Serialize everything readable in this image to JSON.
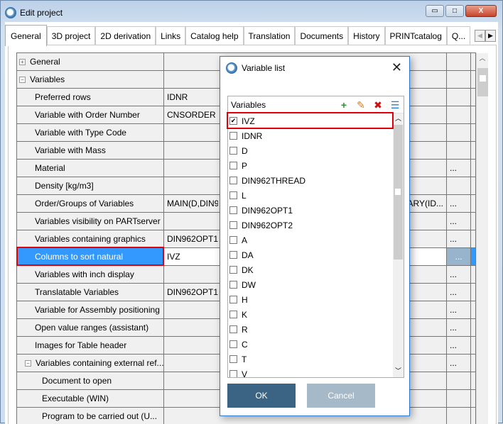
{
  "window": {
    "title": "Edit project",
    "minimize": "▭",
    "maximize": "□",
    "close": "X"
  },
  "tabs": [
    "General",
    "3D project",
    "2D derivation",
    "Links",
    "Catalog help",
    "Translation",
    "Documents",
    "History",
    "PRINTcatalog",
    "Q..."
  ],
  "tab_nav": {
    "prev": "◀",
    "next": "▶"
  },
  "grid": {
    "rows": [
      {
        "name": "General",
        "value": "",
        "level": 0,
        "expander": "+",
        "button": ""
      },
      {
        "name": "Variables",
        "value": "",
        "level": 0,
        "expander": "−",
        "button": ""
      },
      {
        "name": "Preferred rows",
        "value": "IDNR",
        "level": 1,
        "expander": "",
        "button": ""
      },
      {
        "name": "Variable with Order Number",
        "value": "CNSORDER",
        "level": 1,
        "expander": "",
        "button": ""
      },
      {
        "name": "Variable with Type Code",
        "value": "",
        "level": 1,
        "expander": "",
        "button": ""
      },
      {
        "name": "Variable with Mass",
        "value": "",
        "level": 1,
        "expander": "",
        "button": ""
      },
      {
        "name": "Material",
        "value": "",
        "level": 1,
        "expander": "",
        "button": "..."
      },
      {
        "name": "Density [kg/m3]",
        "value": "",
        "level": 1,
        "expander": "",
        "button": ""
      },
      {
        "name": "Order/Groups of Variables",
        "value": "MAIN(D,DIN962THREAD,L,DIN962OPT1,DIN962OPT2),SUMMARY(ID...",
        "level": 1,
        "expander": "",
        "button": "..."
      },
      {
        "name": "Variables visibility on PARTserver",
        "value": "",
        "level": 1,
        "expander": "",
        "button": "..."
      },
      {
        "name": "Variables containing graphics",
        "value": "DIN962OPT1,DIN962OPT2",
        "level": 1,
        "expander": "",
        "button": "..."
      },
      {
        "name": "Columns to sort natural",
        "value": "IVZ",
        "level": 1,
        "expander": "",
        "button": "...",
        "selected": true
      },
      {
        "name": "Variables with inch display",
        "value": "",
        "level": 1,
        "expander": "",
        "button": "..."
      },
      {
        "name": "Translatable Variables",
        "value": "DIN962OPT1,DIN962OPT2",
        "level": 1,
        "expander": "",
        "button": "..."
      },
      {
        "name": "Variable for Assembly positioning",
        "value": "",
        "level": 1,
        "expander": "",
        "button": "..."
      },
      {
        "name": "Open value ranges (assistant)",
        "value": "",
        "level": 1,
        "expander": "",
        "button": "..."
      },
      {
        "name": "Images for Table header",
        "value": "",
        "level": 1,
        "expander": "",
        "button": "..."
      },
      {
        "name": "Variables containing external ref...",
        "value": "",
        "level": 1,
        "expander": "−",
        "button": "..."
      },
      {
        "name": "Document to open",
        "value": "",
        "level": 2,
        "expander": "",
        "button": ""
      },
      {
        "name": "Executable (WIN)",
        "value": "",
        "level": 2,
        "expander": "",
        "button": ""
      },
      {
        "name": "Program to be carried out (U...",
        "value": "",
        "level": 2,
        "expander": "",
        "button": ""
      }
    ]
  },
  "dialog": {
    "title": "Variable list",
    "close": "✕",
    "list_header": "Variables",
    "tools": [
      {
        "icon": "add-icon",
        "glyph": "+",
        "color": "#2e9a2e"
      },
      {
        "icon": "edit-icon",
        "glyph": "✎",
        "color": "#e07a10"
      },
      {
        "icon": "delete-icon",
        "glyph": "✖",
        "color": "#d01010"
      },
      {
        "icon": "list-view-icon",
        "glyph": "☰",
        "color": "#1c7fd6"
      }
    ],
    "items": [
      {
        "label": "IVZ",
        "checked": true
      },
      {
        "label": "IDNR",
        "checked": false
      },
      {
        "label": "D",
        "checked": false
      },
      {
        "label": "P",
        "checked": false
      },
      {
        "label": "DIN962THREAD",
        "checked": false
      },
      {
        "label": "L",
        "checked": false
      },
      {
        "label": "DIN962OPT1",
        "checked": false
      },
      {
        "label": "DIN962OPT2",
        "checked": false
      },
      {
        "label": "A",
        "checked": false
      },
      {
        "label": "DA",
        "checked": false
      },
      {
        "label": "DK",
        "checked": false
      },
      {
        "label": "DW",
        "checked": false
      },
      {
        "label": "H",
        "checked": false
      },
      {
        "label": "K",
        "checked": false
      },
      {
        "label": "R",
        "checked": false
      },
      {
        "label": "C",
        "checked": false
      },
      {
        "label": "T",
        "checked": false
      },
      {
        "label": "V",
        "checked": false
      }
    ],
    "ok": "OK",
    "cancel": "Cancel"
  },
  "colors": {
    "selection": "#3399ff",
    "highlight": "#e0000a",
    "ok_button": "#3a6384"
  }
}
